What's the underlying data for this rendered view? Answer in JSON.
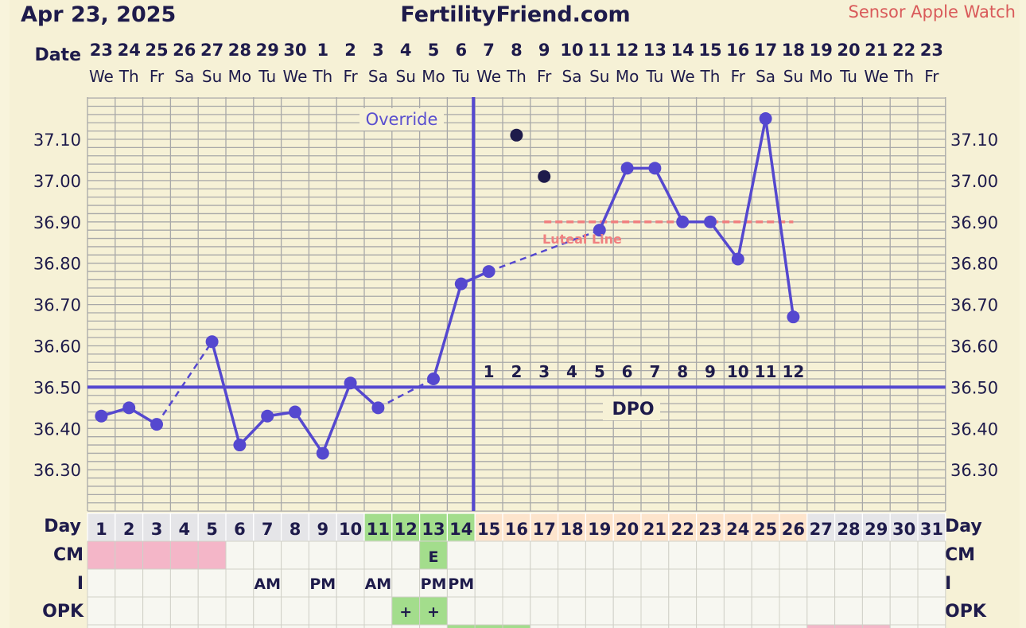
{
  "header": {
    "date": "Apr 23, 2025",
    "site": "FertilityFriend.com",
    "sensor": "Sensor Apple Watch"
  },
  "row_labels": {
    "date": "Date",
    "day": "Day",
    "cm": "CM",
    "i": "I",
    "opk": "OPK"
  },
  "annotations": {
    "override": "Override",
    "dpo": "DPO",
    "luteal": "Luteal Line"
  },
  "colors": {
    "line": "#5548cf",
    "open_dot": "#1e1b4b",
    "luteal": "#f08080",
    "grid": "#a8a8a8",
    "menstrual": "#f4b6c8",
    "fertile": "#a3dd8c",
    "luteal_cell": "#fde4cc",
    "plain_cell": "#f7f7f1",
    "future_cell": "#e5e5e8"
  },
  "chart_data": {
    "type": "line",
    "y_ticks": [
      "36.30",
      "36.40",
      "36.50",
      "36.60",
      "36.70",
      "36.80",
      "36.90",
      "37.00",
      "37.10"
    ],
    "ylim": [
      36.2,
      37.2
    ],
    "date_numbers": [
      "23",
      "24",
      "25",
      "26",
      "27",
      "28",
      "29",
      "30",
      "1",
      "2",
      "3",
      "4",
      "5",
      "6",
      "7",
      "8",
      "9",
      "10",
      "11",
      "12",
      "13",
      "14",
      "15",
      "16",
      "17",
      "18",
      "19",
      "20",
      "21",
      "22",
      "23"
    ],
    "weekdays": [
      "We",
      "Th",
      "Fr",
      "Sa",
      "Su",
      "Mo",
      "Tu",
      "We",
      "Th",
      "Fr",
      "Sa",
      "Su",
      "Mo",
      "Tu",
      "We",
      "Th",
      "Fr",
      "Sa",
      "Su",
      "Mo",
      "Tu",
      "We",
      "Th",
      "Fr",
      "Sa",
      "Su",
      "Mo",
      "Tu",
      "We",
      "Th",
      "Fr"
    ],
    "cycle_days": [
      "1",
      "2",
      "3",
      "4",
      "5",
      "6",
      "7",
      "8",
      "9",
      "10",
      "11",
      "12",
      "13",
      "14",
      "15",
      "16",
      "17",
      "18",
      "19",
      "20",
      "21",
      "22",
      "23",
      "24",
      "25",
      "26",
      "27",
      "28",
      "29",
      "30",
      "31"
    ],
    "temps": [
      36.43,
      36.45,
      36.41,
      null,
      36.61,
      36.36,
      36.43,
      36.44,
      36.34,
      36.51,
      36.45,
      null,
      36.52,
      36.75,
      36.78,
      null,
      null,
      null,
      36.88,
      37.03,
      37.03,
      36.9,
      36.9,
      36.81,
      37.15,
      36.67
    ],
    "discarded": [
      {
        "day": 16,
        "temp": 37.11
      },
      {
        "day": 17,
        "temp": 37.01
      }
    ],
    "coverline": 36.5,
    "ovulation_day": 14,
    "luteal_line": {
      "start_day": 17,
      "end_day": 26,
      "temp": 36.9
    },
    "dpo_labels": [
      "1",
      "2",
      "3",
      "4",
      "5",
      "6",
      "7",
      "8",
      "9",
      "10",
      "11",
      "12"
    ],
    "dpo_start_day": 15,
    "cm": [
      {
        "day": 13,
        "value": "E"
      }
    ],
    "intercourse": [
      {
        "day": 7,
        "value": "AM"
      },
      {
        "day": 9,
        "value": "PM"
      },
      {
        "day": 11,
        "value": "AM"
      },
      {
        "day": 13,
        "value": "PM"
      },
      {
        "day": 14,
        "value": "PM"
      }
    ],
    "opk": [
      {
        "day": 12,
        "value": "+"
      },
      {
        "day": 13,
        "value": "+"
      }
    ]
  }
}
